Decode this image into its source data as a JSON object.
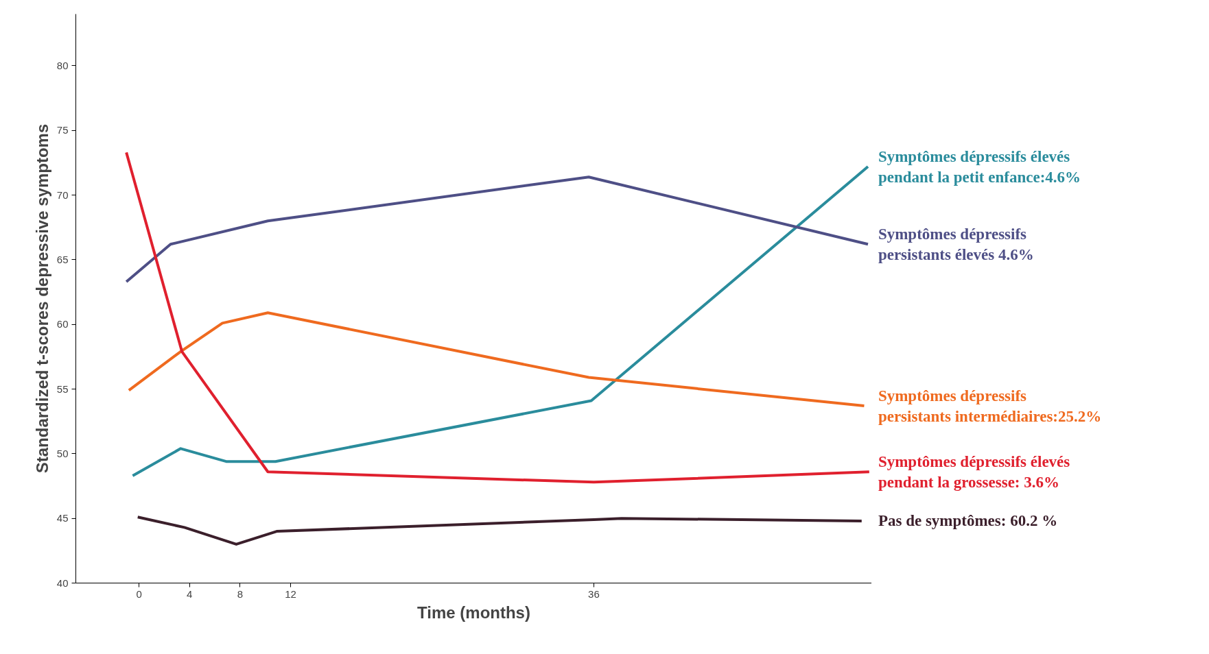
{
  "chart_data": {
    "type": "line",
    "xlabel": "Time (months)",
    "ylabel": "Standardized t-scores depressive symptoms",
    "xlim": [
      -5,
      58
    ],
    "ylim": [
      40,
      84
    ],
    "xticks": [
      0,
      4,
      8,
      12,
      36
    ],
    "yticks": [
      40,
      45,
      50,
      55,
      60,
      65,
      70,
      75,
      80
    ],
    "grid": false,
    "marker": "none",
    "line_style": "solid",
    "series": [
      {
        "name": "Symptômes dépressifs élevés\npendant la petit enfance:4.6%",
        "color": "#2a8c9c",
        "x": [
          -0.5,
          3.3,
          6.9,
          10.8,
          35.8,
          57.7
        ],
        "values": [
          48.3,
          50.4,
          49.4,
          49.4,
          54.1,
          72.2
        ]
      },
      {
        "name": "Symptômes dépressifs\npersistants élevés 4.6%",
        "color": "#4e4f86",
        "x": [
          -1,
          2.5,
          10.2,
          35.6,
          57.7
        ],
        "values": [
          63.3,
          66.2,
          68.0,
          71.4,
          66.2
        ]
      },
      {
        "name": "Symptômes dépressifs\npersistants intermédiaires:25.2%",
        "color": "#ef6a1f",
        "x": [
          -0.8,
          3.3,
          6.6,
          10.2,
          35.6,
          57.4
        ],
        "values": [
          54.9,
          57.9,
          60.1,
          60.9,
          55.9,
          53.7
        ]
      },
      {
        "name": "Symptômes dépressifs élevés\npendant la grossesse: 3.6%",
        "color": "#e0202e",
        "x": [
          -1,
          3.4,
          10.2,
          36,
          57.8
        ],
        "values": [
          73.3,
          57.9,
          48.6,
          47.8,
          48.6
        ]
      },
      {
        "name": "Pas de symptômes:  60.2 %",
        "color": "#3b1f2b",
        "x": [
          -0.1,
          3.6,
          7.7,
          10.9,
          36,
          38.2,
          57.2
        ],
        "values": [
          45.1,
          44.3,
          43.0,
          44.0,
          44.9,
          45.0,
          44.8
        ]
      }
    ]
  }
}
